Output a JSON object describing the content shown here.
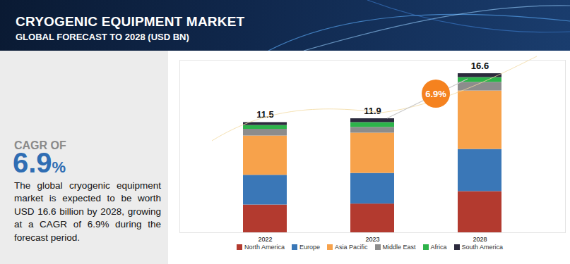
{
  "chart_data": {
    "type": "bar",
    "stacked": true,
    "title": "CRYOGENIC EQUIPMENT MARKET",
    "subtitle": "GLOBAL FORECAST TO 2028 (USD BN)",
    "categories": [
      "2022",
      "2023",
      "2028"
    ],
    "series": [
      {
        "name": "North America",
        "color": "#b33a2f",
        "values": [
          2.9,
          3.0,
          4.3
        ]
      },
      {
        "name": "Europe",
        "color": "#3a77b7",
        "values": [
          3.1,
          3.2,
          4.4
        ]
      },
      {
        "name": "Asia Pacific",
        "color": "#f7a24b",
        "values": [
          4.1,
          4.2,
          6.1
        ]
      },
      {
        "name": "Middle East",
        "color": "#8c8c8c",
        "values": [
          0.7,
          0.6,
          0.9
        ]
      },
      {
        "name": "Africa",
        "color": "#2db34a",
        "values": [
          0.4,
          0.5,
          0.5
        ]
      },
      {
        "name": "South America",
        "color": "#2c2a3d",
        "values": [
          0.3,
          0.4,
          0.4
        ]
      }
    ],
    "totals": [
      11.5,
      11.9,
      16.6
    ],
    "ylim": [
      0,
      18
    ],
    "tick_labels": "x",
    "legend": "bottom",
    "annotations": [
      {
        "text": "6.9%"
      }
    ],
    "sidebar": {
      "heading": "CAGR OF",
      "value": "6.9%",
      "text": "The global cryogenic equipment market is expected to be worth USD 16.6 billion by 2028, growing at a CAGR of 6.9% during the forecast period."
    }
  }
}
